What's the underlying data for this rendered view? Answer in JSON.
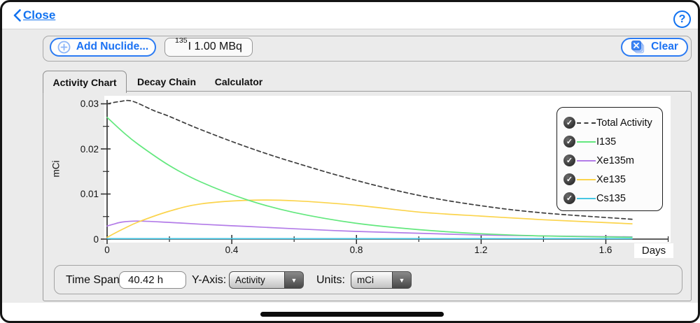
{
  "window": {
    "close_label": "Close"
  },
  "icons": {
    "help_glyph": "?",
    "checkmark_glyph": "✓",
    "dropdown_arrow_glyph": "▼"
  },
  "toolbar": {
    "add_nuclide_label": "Add Nuclide...",
    "nuclide_chip": {
      "superscript": "135",
      "label": "I 1.00 MBq"
    },
    "clear_label": "Clear"
  },
  "tabs": [
    {
      "label": "Activity Chart",
      "selected": true
    },
    {
      "label": "Decay Chain",
      "selected": false
    },
    {
      "label": "Calculator",
      "selected": false
    }
  ],
  "controls": {
    "time_span_label": "Time Span:",
    "time_span_value": "40.42 h",
    "y_axis_label": "Y-Axis:",
    "y_axis_value": "Activity",
    "units_label": "Units:",
    "units_value": "mCi"
  },
  "chart_data": {
    "type": "line",
    "xlabel": "Days",
    "ylabel": "mCi",
    "xlim": [
      0,
      1.8
    ],
    "ylim": [
      0,
      0.03
    ],
    "grid": false,
    "legend_position": "upper right",
    "x_ticks": {
      "major": [
        0,
        0.4,
        0.8,
        1.2,
        1.6
      ],
      "minor": [
        0.2,
        0.6,
        1.0,
        1.4,
        1.8
      ],
      "labels": [
        "0",
        "0.4",
        "0.8",
        "1.2",
        "1.6"
      ]
    },
    "y_ticks": {
      "major": [
        0,
        0.01,
        0.02,
        0.03
      ],
      "minor": [
        0.005,
        0.015,
        0.025
      ],
      "labels": [
        "0",
        "0.01",
        "0.02",
        "0.03"
      ]
    },
    "series": [
      {
        "name": "Total Activity",
        "color": "#3d3d3d",
        "style": "dashed",
        "checked": true,
        "x": [
          0,
          0.04,
          0.08,
          0.15,
          0.2,
          0.3,
          0.45,
          0.6,
          0.8,
          1.0,
          1.2,
          1.4,
          1.684
        ],
        "y": [
          0.03,
          0.0305,
          0.0306,
          0.0285,
          0.0272,
          0.0243,
          0.0204,
          0.017,
          0.013,
          0.0097,
          0.0074,
          0.0058,
          0.0044
        ]
      },
      {
        "name": "I135",
        "color": "#63e87e",
        "style": "solid",
        "checked": true,
        "x": [
          0,
          0.05,
          0.1,
          0.2,
          0.3,
          0.45,
          0.6,
          0.8,
          1.0,
          1.2,
          1.4,
          1.684
        ],
        "y": [
          0.027,
          0.0238,
          0.021,
          0.0163,
          0.0127,
          0.0087,
          0.0059,
          0.0035,
          0.0021,
          0.0012,
          0.0007,
          0.0004
        ]
      },
      {
        "name": "Xe135m",
        "color": "#b37ce8",
        "style": "solid",
        "checked": true,
        "x": [
          0,
          0.02,
          0.05,
          0.1,
          0.2,
          0.3,
          0.45,
          0.6,
          0.8,
          1.0,
          1.2,
          1.4,
          1.684
        ],
        "y": [
          0.0029,
          0.0033,
          0.0038,
          0.004,
          0.0037,
          0.0033,
          0.0028,
          0.0023,
          0.0017,
          0.0013,
          0.0009,
          0.0007,
          0.0005
        ]
      },
      {
        "name": "Xe135",
        "color": "#fbd44c",
        "style": "solid",
        "checked": true,
        "x": [
          0,
          0.05,
          0.1,
          0.2,
          0.3,
          0.45,
          0.6,
          0.8,
          1.0,
          1.2,
          1.4,
          1.684
        ],
        "y": [
          0.0004,
          0.0022,
          0.0038,
          0.0062,
          0.0078,
          0.0086,
          0.0085,
          0.0075,
          0.006,
          0.0051,
          0.0043,
          0.0034
        ]
      },
      {
        "name": "Cs135",
        "color": "#46c6e3",
        "style": "solid",
        "checked": true,
        "x": [
          0,
          0.4,
          0.8,
          1.2,
          1.684
        ],
        "y": [
          0.0001,
          0.0001,
          0.0001,
          0.0001,
          0.0001
        ]
      }
    ]
  }
}
